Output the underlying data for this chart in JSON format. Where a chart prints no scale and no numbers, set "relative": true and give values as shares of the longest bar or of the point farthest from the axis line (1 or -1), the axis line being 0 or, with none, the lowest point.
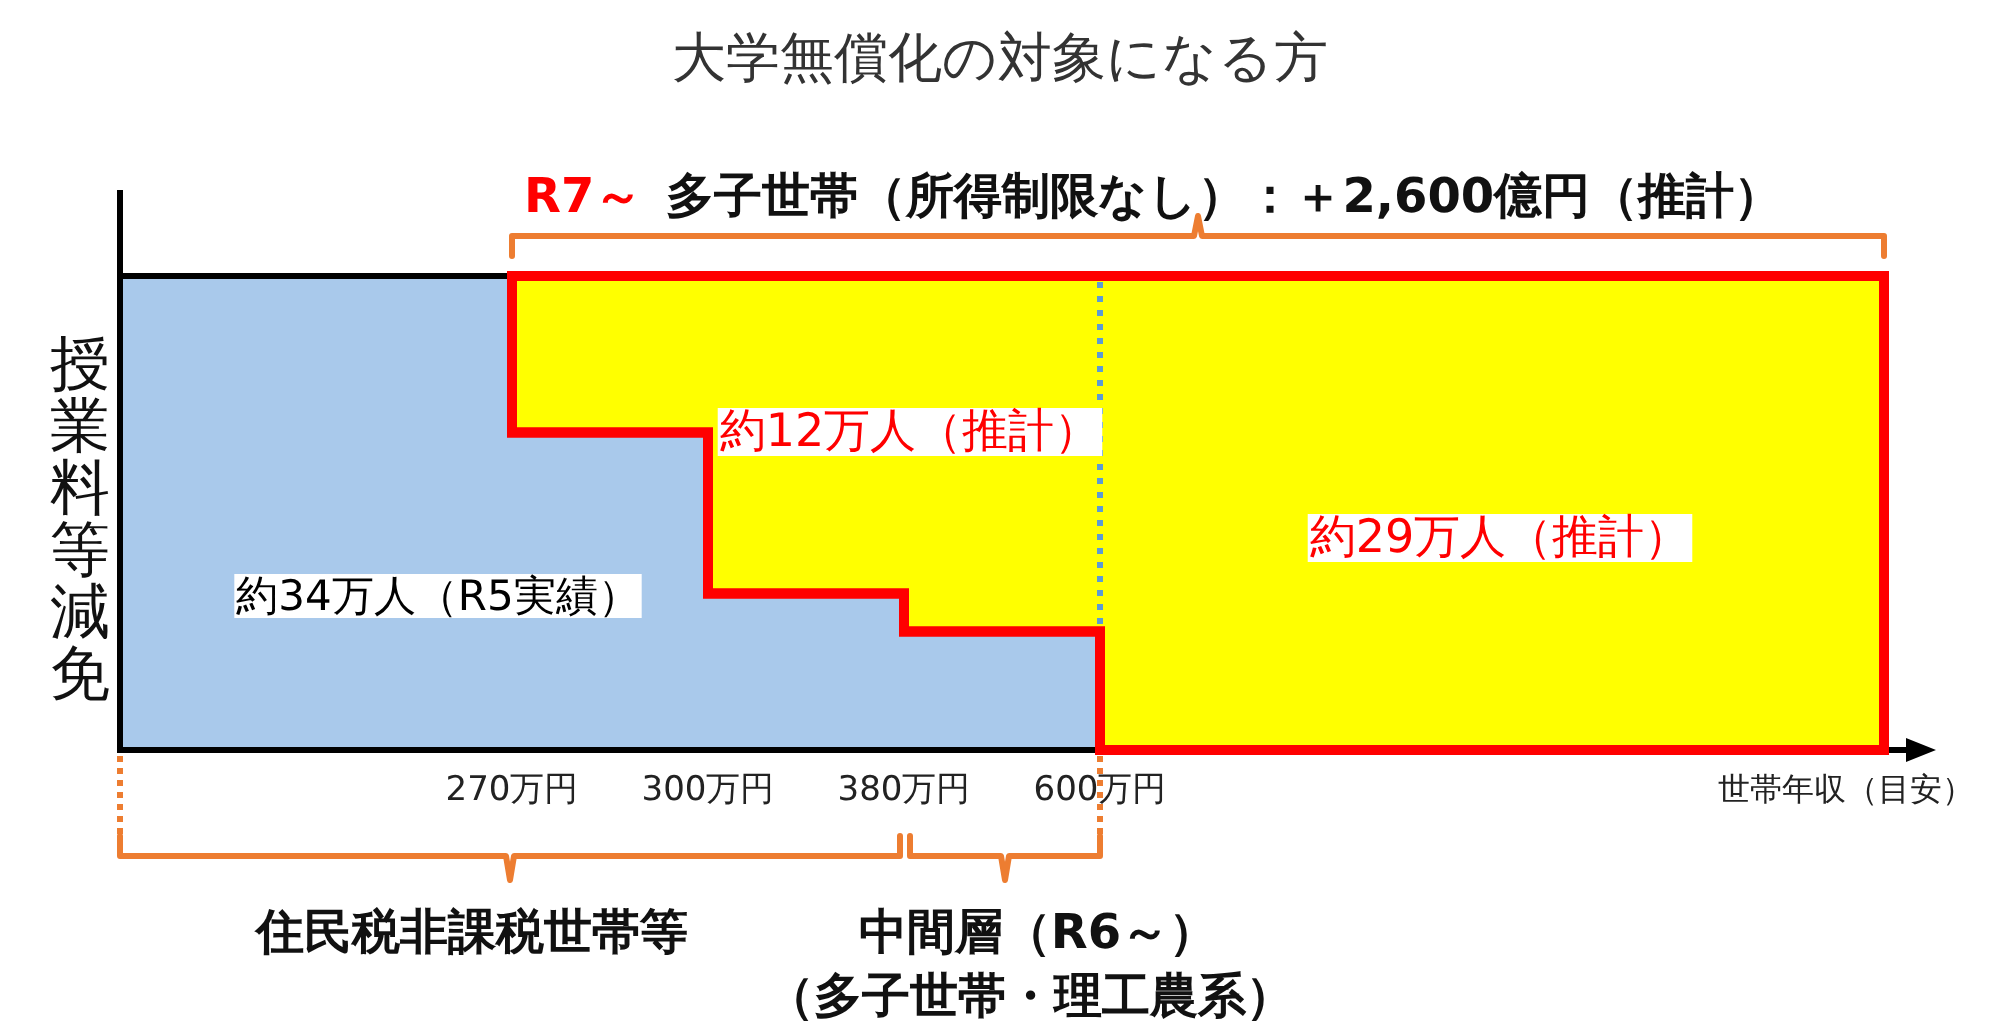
{
  "chart_data": {
    "type": "area",
    "title": "大学無償化の対象になる方",
    "xlabel": "世帯年収（目安）",
    "ylabel": "授業料等減免",
    "relative": true,
    "stacked": true,
    "categories": [
      null,
      null,
      "270万円",
      "300万円",
      "380万円",
      "600万円",
      null,
      null,
      null,
      null
    ],
    "series": [
      {
        "name": "約34万人（R5実績）",
        "color": "#a9c9eb",
        "values": [
          1,
          1,
          0.67,
          0.33,
          0.25,
          0,
          null,
          null,
          null,
          null
        ]
      },
      {
        "color": "#ffff00",
        "values": [
          null,
          null,
          0.33,
          0.67,
          0.75,
          1,
          1,
          1,
          1,
          1
        ]
      }
    ],
    "annotations": [
      "R7～",
      "多子世帯（所得制限なし）：＋2,600億円（推計）",
      "約12万人（推計）",
      "約29万人（推計）",
      "住民税非課税世帯等",
      "中間層（R6～）",
      "（多子世帯・理工農系）"
    ]
  }
}
